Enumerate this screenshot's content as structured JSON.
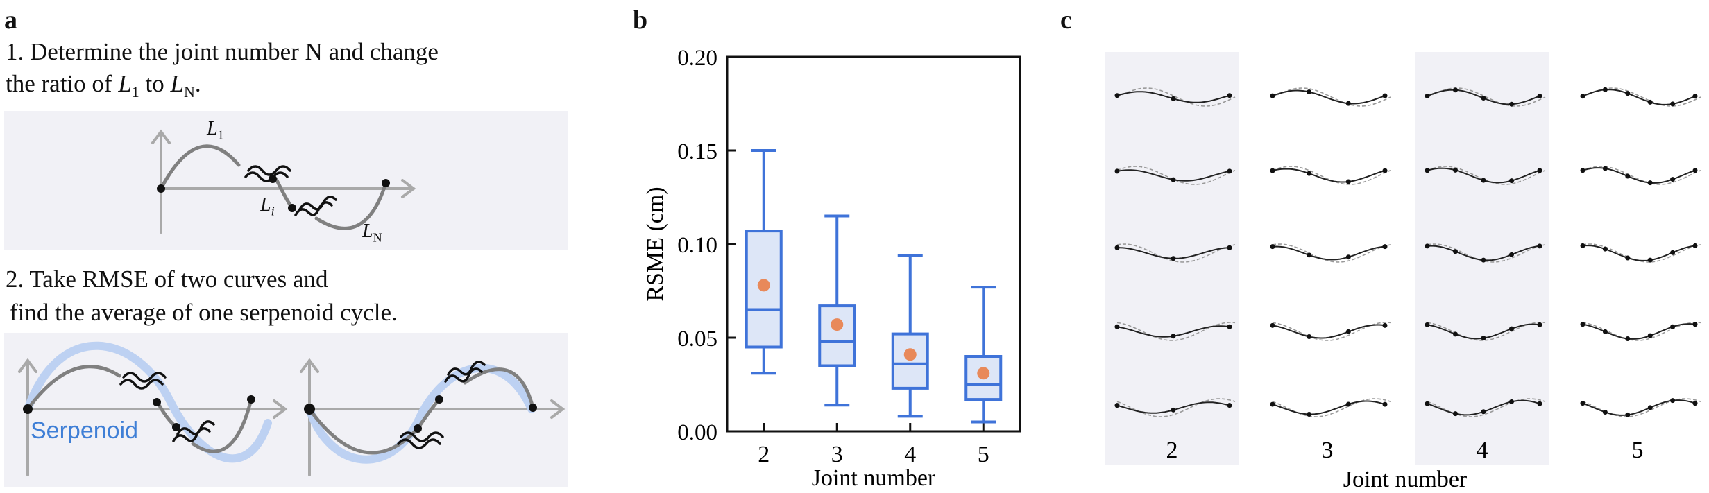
{
  "panel_a": {
    "letter": "a",
    "step1_line1": "1. Determine the joint number N and change",
    "step1_line2_pre": "the ratio of ",
    "step1_L": "L",
    "step1_sub1": "1",
    "step1_to": " to ",
    "step1_subN": "N",
    "step1_end": ".",
    "diagram1": {
      "L1": "L",
      "L1_sub": "1",
      "Li": "L",
      "Li_sub": "i",
      "LN": "L",
      "LN_sub": "N"
    },
    "step2_line1": "2. Take RMSE of two curves and",
    "step2_line2": "find the average of one serpenoid cycle.",
    "serpenoid_label": "Serpenoid"
  },
  "panel_b": {
    "letter": "b"
  },
  "panel_c": {
    "letter": "c",
    "xlabel": "Joint number",
    "columns": [
      "2",
      "3",
      "4",
      "5"
    ]
  },
  "chart_data": {
    "type": "box",
    "title": "",
    "xlabel": "Joint number",
    "ylabel": "RSME (cm)",
    "categories": [
      "2",
      "3",
      "4",
      "5"
    ],
    "ylim": [
      0.0,
      0.2
    ],
    "yticks": [
      "0.00",
      "0.05",
      "0.10",
      "0.15",
      "0.20"
    ],
    "boxes": [
      {
        "category": "2",
        "whisker_low": 0.031,
        "q1": 0.045,
        "median": 0.065,
        "q3": 0.107,
        "whisker_high": 0.15,
        "mean": 0.078
      },
      {
        "category": "3",
        "whisker_low": 0.014,
        "q1": 0.035,
        "median": 0.048,
        "q3": 0.067,
        "whisker_high": 0.115,
        "mean": 0.057
      },
      {
        "category": "4",
        "whisker_low": 0.008,
        "q1": 0.023,
        "median": 0.036,
        "q3": 0.052,
        "whisker_high": 0.094,
        "mean": 0.041
      },
      {
        "category": "5",
        "whisker_low": 0.005,
        "q1": 0.017,
        "median": 0.025,
        "q3": 0.04,
        "whisker_high": 0.077,
        "mean": 0.031
      }
    ],
    "colors": {
      "box_edge": "#3f73d9",
      "box_fill": "#dde6f7",
      "mean_marker": "#e8895a"
    }
  }
}
